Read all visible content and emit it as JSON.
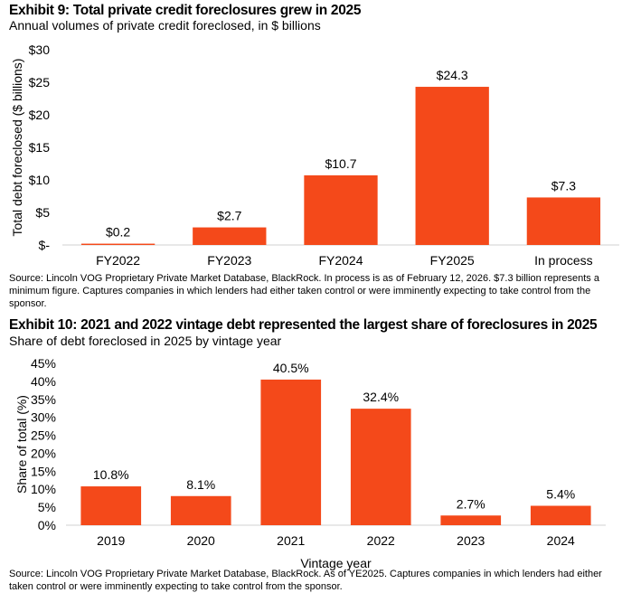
{
  "chart_data": [
    {
      "type": "bar",
      "title": "Exhibit 9: Total private credit foreclosures grew in 2025",
      "subtitle": "Annual volumes of private credit foreclosed, in $ billions",
      "xlabel": "",
      "ylabel": "Total debt foreclosed ($ billions)",
      "categories": [
        "FY2022",
        "FY2023",
        "FY2024",
        "FY2025",
        "In process"
      ],
      "values": [
        0.2,
        2.7,
        10.7,
        24.3,
        7.3
      ],
      "data_labels": [
        "$0.2",
        "$2.7",
        "$10.7",
        "$24.3",
        "$7.3"
      ],
      "ylim": [
        0,
        30
      ],
      "yticks": [
        0,
        5,
        10,
        15,
        20,
        25,
        30
      ],
      "ytick_labels": [
        "$-",
        "$5",
        "$10",
        "$15",
        "$20",
        "$25",
        "$30"
      ],
      "grid": false,
      "color": "#F4491A",
      "source": "Source: Lincoln VOG Proprietary Private Market Database, BlackRock. In process is as of February 12, 2026. $7.3 billion represents a minimum figure. Captures companies in which lenders had either taken control or were imminently expecting to take control from the sponsor."
    },
    {
      "type": "bar",
      "title": "Exhibit 10: 2021 and 2022 vintage debt represented the largest share of foreclosures in 2025",
      "subtitle": "Share of debt foreclosed in 2025 by vintage year",
      "xlabel": "Vintage year",
      "ylabel": "Share of total (%)",
      "categories": [
        "2019",
        "2020",
        "2021",
        "2022",
        "2023",
        "2024"
      ],
      "values": [
        10.8,
        8.1,
        40.5,
        32.4,
        2.7,
        5.4
      ],
      "data_labels": [
        "10.8%",
        "8.1%",
        "40.5%",
        "32.4%",
        "2.7%",
        "5.4%"
      ],
      "ylim": [
        0,
        45
      ],
      "yticks": [
        0,
        5,
        10,
        15,
        20,
        25,
        30,
        35,
        40,
        45
      ],
      "ytick_labels": [
        "0%",
        "5%",
        "10%",
        "15%",
        "20%",
        "25%",
        "30%",
        "35%",
        "40%",
        "45%"
      ],
      "grid": false,
      "color": "#F4491A",
      "source": "Source: Lincoln VOG Proprietary Private Market Database, BlackRock. As of YE2025. Captures companies in which lenders had either taken control or were imminently expecting to take control from the sponsor."
    }
  ]
}
